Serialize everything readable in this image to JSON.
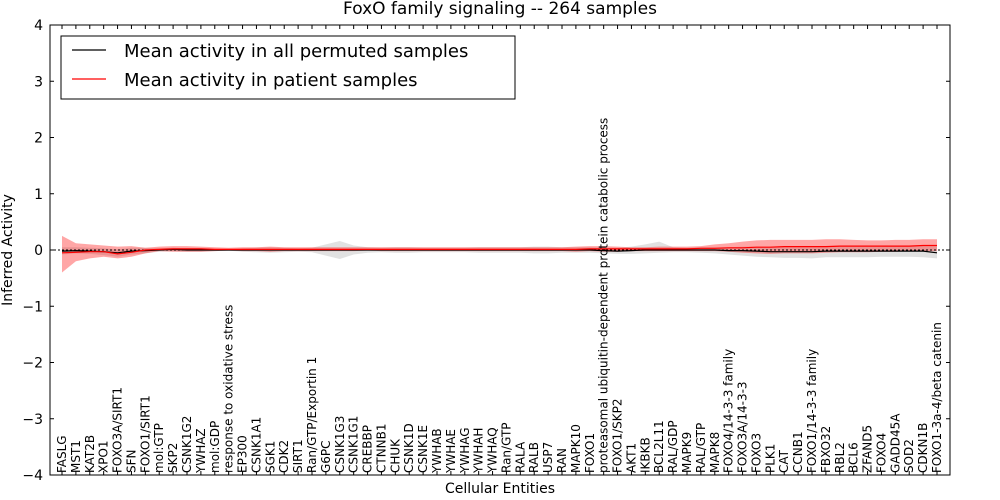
{
  "chart_data": {
    "type": "line",
    "title": "FoxO family signaling -- 264 samples",
    "xlabel": "Cellular Entities",
    "ylabel": "Inferred Activity",
    "ylim": [
      -4,
      4
    ],
    "yticks": [
      "-4",
      "-3",
      "-2",
      "-1",
      "0",
      "1",
      "2",
      "3",
      "4"
    ],
    "legend": {
      "placement": "top-left",
      "entries": [
        {
          "label": "Mean activity in all permuted samples",
          "color": "#000000"
        },
        {
          "label": "Mean activity in patient samples",
          "color": "#ff0000"
        }
      ]
    },
    "categories": [
      "FASLG",
      "MST1",
      "KAT2B",
      "XPO1",
      "FOXO3A/SIRT1",
      "SFN",
      "FOXO1/SIRT1",
      "mol:GTP",
      "SKP2",
      "CSNK1G2",
      "YWHAZ",
      "mol:GDP",
      "response to oxidative stress",
      "EP300",
      "CSNK1A1",
      "SGK1",
      "CDK2",
      "SIRT1",
      "Ran/GTP/Exportin 1",
      "G6PC",
      "CSNK1G3",
      "CSNK1G1",
      "CREBBP",
      "CTNNB1",
      "CHUK",
      "CSNK1D",
      "CSNK1E",
      "YWHAB",
      "YWHAE",
      "YWHAG",
      "YWHAH",
      "YWHAQ",
      "Ran/GTP",
      "RALA",
      "RALB",
      "USP7",
      "RAN",
      "MAPK10",
      "FOXO1",
      "proteasomal ubiquitin-dependent protein catabolic process",
      "FOXO1/SKP2",
      "AKT1",
      "IKBKB",
      "BCL2L11",
      "RAL/GDP",
      "MAPK9",
      "RAL/GTP",
      "MAPK8",
      "FOXO4/14-3-3 family",
      "FOXO3A/14-3-3",
      "FOXO3",
      "PLK1",
      "CAT",
      "CCNB1",
      "FOXO1/14-3-3 family",
      "FBXO32",
      "RBL2",
      "BCL6",
      "ZFAND5",
      "FOXO4",
      "GADD45A",
      "SOD2",
      "CDKN1B",
      "FOXO1-3a-4/beta catenin"
    ],
    "series": [
      {
        "name": "Mean activity in all permuted samples",
        "color": "#000000",
        "values": [
          -0.02,
          -0.01,
          -0.02,
          -0.03,
          -0.05,
          -0.02,
          -0.01,
          0.0,
          0.01,
          0.0,
          0.0,
          0.0,
          0.0,
          0.0,
          0.0,
          0.0,
          0.0,
          0.0,
          0.0,
          0.0,
          0.0,
          0.0,
          0.0,
          0.0,
          0.0,
          0.0,
          0.0,
          0.0,
          0.0,
          0.0,
          0.0,
          0.0,
          0.0,
          0.0,
          0.0,
          0.0,
          0.0,
          0.0,
          0.0,
          -0.01,
          -0.02,
          -0.01,
          0.0,
          0.0,
          0.0,
          0.0,
          0.0,
          0.0,
          -0.01,
          -0.01,
          -0.02,
          -0.03,
          -0.03,
          -0.03,
          -0.03,
          -0.02,
          -0.02,
          -0.02,
          -0.02,
          -0.02,
          -0.02,
          -0.02,
          -0.02,
          -0.05
        ],
        "lower": [
          -0.08,
          -0.06,
          -0.07,
          -0.09,
          -0.12,
          -0.08,
          -0.06,
          -0.03,
          -0.02,
          -0.03,
          -0.03,
          -0.02,
          -0.01,
          -0.03,
          -0.04,
          -0.05,
          -0.04,
          -0.03,
          -0.04,
          -0.1,
          -0.16,
          -0.08,
          -0.05,
          -0.04,
          -0.05,
          -0.05,
          -0.04,
          -0.04,
          -0.04,
          -0.04,
          -0.05,
          -0.05,
          -0.05,
          -0.05,
          -0.06,
          -0.06,
          -0.05,
          -0.05,
          -0.05,
          -0.06,
          -0.07,
          -0.07,
          -0.06,
          -0.05,
          -0.04,
          -0.04,
          -0.05,
          -0.06,
          -0.08,
          -0.1,
          -0.12,
          -0.13,
          -0.14,
          -0.14,
          -0.15,
          -0.13,
          -0.13,
          -0.13,
          -0.13,
          -0.12,
          -0.12,
          -0.12,
          -0.13,
          -0.15
        ],
        "upper": [
          0.05,
          0.05,
          0.04,
          0.03,
          0.01,
          0.04,
          0.04,
          0.03,
          0.04,
          0.03,
          0.03,
          0.02,
          0.01,
          0.03,
          0.04,
          0.05,
          0.04,
          0.03,
          0.04,
          0.1,
          0.16,
          0.08,
          0.05,
          0.04,
          0.05,
          0.05,
          0.04,
          0.04,
          0.04,
          0.04,
          0.05,
          0.05,
          0.05,
          0.05,
          0.06,
          0.06,
          0.05,
          0.05,
          0.05,
          0.04,
          0.04,
          0.06,
          0.1,
          0.15,
          0.05,
          0.04,
          0.05,
          0.05,
          0.05,
          0.06,
          0.06,
          0.06,
          0.06,
          0.06,
          0.06,
          0.06,
          0.06,
          0.06,
          0.06,
          0.06,
          0.07,
          0.07,
          0.07,
          0.07
        ]
      },
      {
        "name": "Mean activity in patient samples",
        "color": "#ff0000",
        "values": [
          -0.05,
          -0.04,
          -0.03,
          -0.03,
          -0.07,
          -0.04,
          0.0,
          0.01,
          0.02,
          0.02,
          0.02,
          0.01,
          0.01,
          0.01,
          0.01,
          0.01,
          0.01,
          0.01,
          0.01,
          0.01,
          0.01,
          0.01,
          0.01,
          0.01,
          0.01,
          0.01,
          0.01,
          0.01,
          0.01,
          0.01,
          0.01,
          0.01,
          0.01,
          0.01,
          0.01,
          0.01,
          0.01,
          0.01,
          0.02,
          0.02,
          0.02,
          0.02,
          0.02,
          0.02,
          0.02,
          0.02,
          0.03,
          0.03,
          0.04,
          0.04,
          0.05,
          0.05,
          0.06,
          0.06,
          0.06,
          0.06,
          0.07,
          0.07,
          0.07,
          0.07,
          0.07,
          0.07,
          0.08,
          0.08
        ],
        "lower": [
          -0.4,
          -0.2,
          -0.15,
          -0.12,
          -0.15,
          -0.12,
          -0.06,
          -0.02,
          -0.03,
          -0.03,
          -0.03,
          -0.02,
          -0.01,
          -0.02,
          -0.02,
          -0.03,
          -0.02,
          -0.02,
          -0.02,
          -0.02,
          -0.02,
          -0.02,
          -0.01,
          -0.02,
          -0.02,
          -0.02,
          -0.02,
          -0.02,
          -0.02,
          -0.02,
          -0.02,
          -0.02,
          -0.02,
          -0.02,
          -0.02,
          -0.02,
          -0.02,
          -0.03,
          -0.02,
          -0.03,
          -0.03,
          -0.02,
          -0.02,
          -0.02,
          -0.02,
          -0.02,
          -0.02,
          -0.02,
          -0.03,
          -0.05,
          -0.06,
          -0.07,
          -0.06,
          -0.06,
          -0.06,
          -0.05,
          -0.04,
          -0.04,
          -0.04,
          -0.03,
          -0.03,
          -0.02,
          -0.02,
          -0.02
        ],
        "upper": [
          0.25,
          0.12,
          0.1,
          0.08,
          0.06,
          0.07,
          0.04,
          0.06,
          0.07,
          0.07,
          0.06,
          0.05,
          0.04,
          0.05,
          0.05,
          0.06,
          0.05,
          0.05,
          0.05,
          0.05,
          0.05,
          0.05,
          0.05,
          0.05,
          0.05,
          0.05,
          0.05,
          0.05,
          0.05,
          0.05,
          0.05,
          0.05,
          0.05,
          0.05,
          0.05,
          0.05,
          0.05,
          0.06,
          0.07,
          0.07,
          0.06,
          0.05,
          0.05,
          0.06,
          0.06,
          0.06,
          0.07,
          0.1,
          0.12,
          0.15,
          0.17,
          0.18,
          0.18,
          0.18,
          0.18,
          0.19,
          0.19,
          0.18,
          0.17,
          0.17,
          0.18,
          0.18,
          0.19,
          0.19
        ]
      }
    ]
  }
}
